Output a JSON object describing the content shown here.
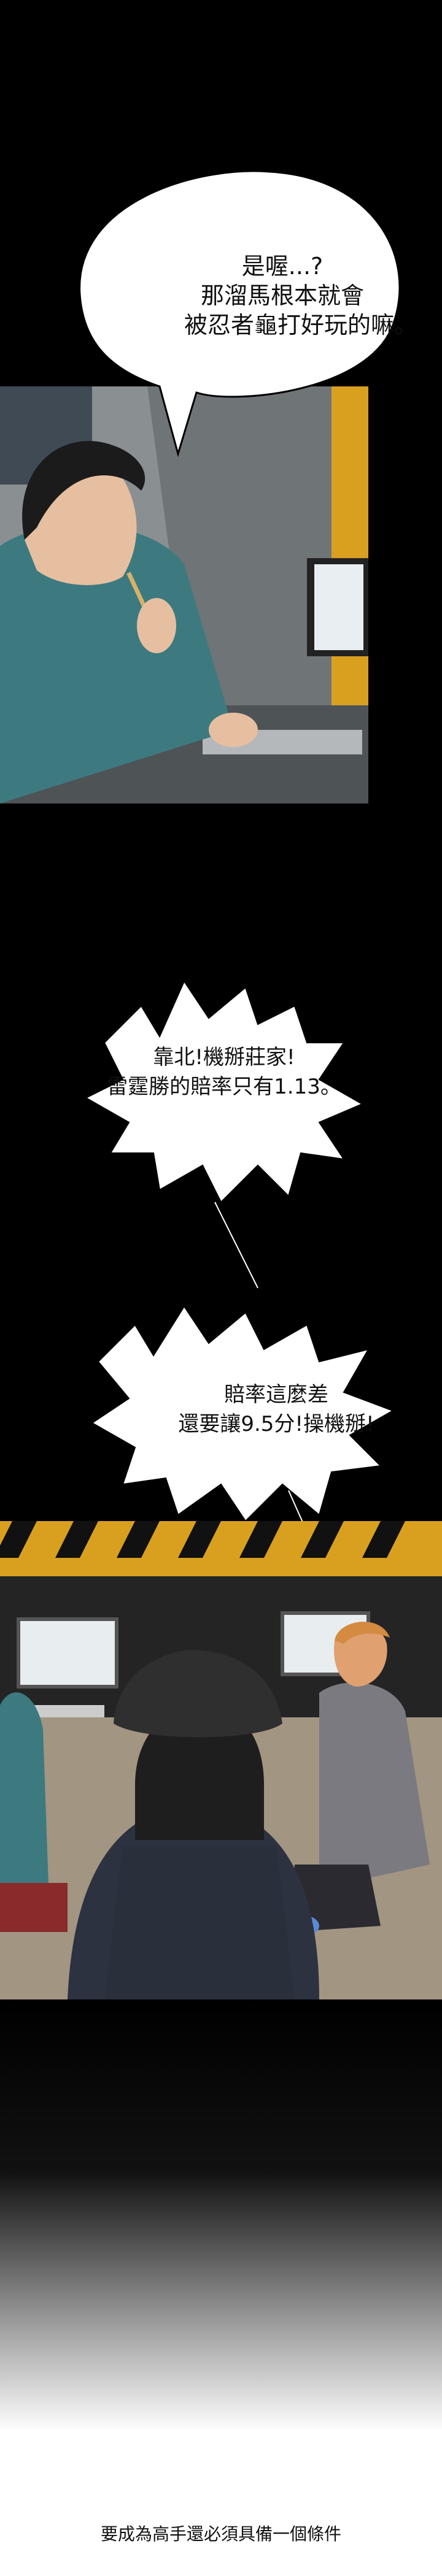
{
  "panel1": {
    "bubble": {
      "lines": [
        "是喔...?",
        "那溜馬根本就會",
        "被忍者龜打好玩的嘛。"
      ]
    }
  },
  "panel2": {
    "bubble_a": {
      "lines": [
        "靠北!機掰莊家!",
        "雷霆勝的賠率只有1.13。"
      ]
    },
    "bubble_b": {
      "lines": [
        "賠率這麼差",
        "還要讓9.5分!操機掰!"
      ]
    }
  },
  "caption": {
    "text": "要成為高手還必須具備一個條件"
  },
  "colors": {
    "background": "#000000",
    "wall_yellow": "#d9a020",
    "hoodie_teal": "#3c7a80",
    "bubble_fill": "#ffffff"
  }
}
